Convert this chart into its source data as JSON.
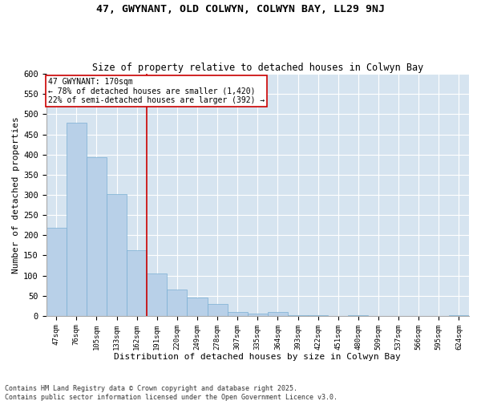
{
  "title1": "47, GWYNANT, OLD COLWYN, COLWYN BAY, LL29 9NJ",
  "title2": "Size of property relative to detached houses in Colwyn Bay",
  "xlabel": "Distribution of detached houses by size in Colwyn Bay",
  "ylabel": "Number of detached properties",
  "categories": [
    "47sqm",
    "76sqm",
    "105sqm",
    "133sqm",
    "162sqm",
    "191sqm",
    "220sqm",
    "249sqm",
    "278sqm",
    "307sqm",
    "335sqm",
    "364sqm",
    "393sqm",
    "422sqm",
    "451sqm",
    "480sqm",
    "509sqm",
    "537sqm",
    "566sqm",
    "595sqm",
    "624sqm"
  ],
  "values": [
    218,
    480,
    393,
    303,
    163,
    105,
    65,
    46,
    30,
    10,
    6,
    9,
    2,
    1,
    0,
    1,
    0,
    0,
    0,
    0,
    2
  ],
  "bar_color": "#b8d0e8",
  "bar_edge_color": "#7aafd4",
  "bg_color": "#d6e4f0",
  "grid_color": "#ffffff",
  "vline_x_index": 4,
  "vline_color": "#cc0000",
  "annotation_title": "47 GWYNANT: 170sqm",
  "annotation_line1": "← 78% of detached houses are smaller (1,420)",
  "annotation_line2": "22% of semi-detached houses are larger (392) →",
  "annotation_box_color": "#cc0000",
  "footnote1": "Contains HM Land Registry data © Crown copyright and database right 2025.",
  "footnote2": "Contains public sector information licensed under the Open Government Licence v3.0.",
  "ylim": [
    0,
    600
  ],
  "yticks": [
    0,
    50,
    100,
    150,
    200,
    250,
    300,
    350,
    400,
    450,
    500,
    550,
    600
  ],
  "fig_bg": "#ffffff"
}
